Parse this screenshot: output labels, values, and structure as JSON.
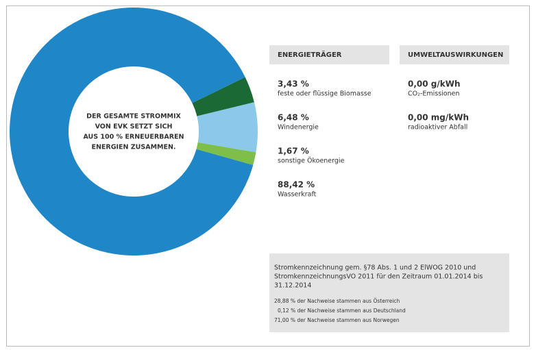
{
  "chart_data": {
    "type": "donut",
    "center_text": [
      "DER GESAMTE STROMMIX",
      "VON EVK SETZT SICH",
      "AUS 100 % ERNEUERBAREN",
      "ENERGIEN ZUSAMMEN."
    ],
    "legend_title": "ENERGIETRÄGER",
    "categories": [
      "feste oder flüssige Biomasse",
      "Windenergie",
      "sonstige Ökoenergie",
      "Wasserkraft"
    ],
    "values": [
      3.43,
      6.48,
      1.67,
      88.42
    ],
    "value_labels": [
      "3,43 %",
      "6,48 %",
      "1,67 %",
      "88,42 %"
    ],
    "colors": [
      "#1b6a36",
      "#8cc8ea",
      "#7dbf4a",
      "#1f86c7"
    ]
  },
  "environment": {
    "title": "UMWELTAUSWIRKUNGEN",
    "items": [
      {
        "value": "0,00 g/kWh",
        "label": "CO₂-Emissionen"
      },
      {
        "value": "0,00 mg/kWh",
        "label": "radioaktiver Abfall"
      }
    ]
  },
  "note": {
    "lines": [
      "Stromkennzeichnung gem. §78 Abs. 1 und 2 ElWOG 2010 und",
      "StromkennzeichnungsVO 2011 für den Zeitraum 01.01.2014 bis",
      "31.12.2014"
    ],
    "sources": [
      "28,88 % der Nachweise stammen aus Österreich",
      "0,12 % der Nachweise stammen aus Deutschland",
      "71,00 % der Nachweise stammen aus Norwegen"
    ]
  }
}
